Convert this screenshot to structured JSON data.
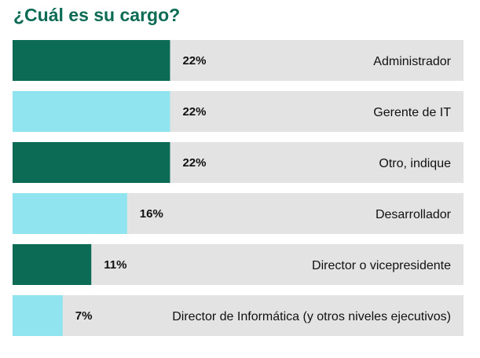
{
  "title": "¿Cuál es su cargo?",
  "colors": {
    "title": "#0b6b55",
    "dark": "#0b6b55",
    "light": "#90e4ef",
    "track": "#e3e3e3"
  },
  "chart_data": {
    "type": "bar",
    "orientation": "horizontal",
    "title": "¿Cuál es su cargo?",
    "categories": [
      "Administrador",
      "Gerente de IT",
      "Otro, indique",
      "Desarrollador",
      "Director o vicepresidente",
      "Director de Informática (y otros niveles ejecutivos)"
    ],
    "values": [
      22,
      22,
      22,
      16,
      11,
      7
    ],
    "value_labels": [
      "22%",
      "22%",
      "22%",
      "16%",
      "11%",
      "7%"
    ],
    "bar_colors": [
      "#0b6b55",
      "#90e4ef",
      "#0b6b55",
      "#90e4ef",
      "#0b6b55",
      "#90e4ef"
    ],
    "xlim": [
      0,
      63
    ],
    "grid": false,
    "legend": "none"
  }
}
